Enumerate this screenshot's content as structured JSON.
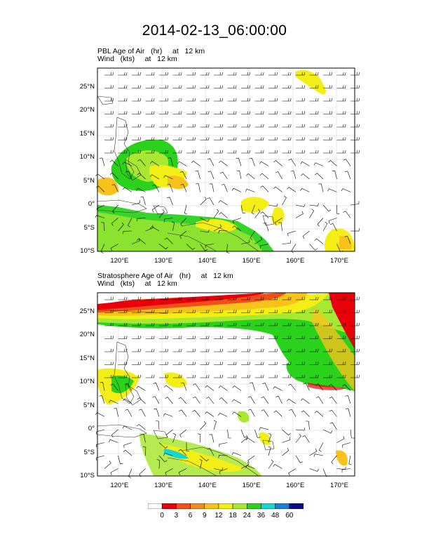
{
  "figure_title": "2014-02-13_06:00:00",
  "panels": [
    {
      "title_line1": "PBL Age of Air   (hr)     at   12 km",
      "title_line2": "Wind   (kts)     at   12 km",
      "lat_labels": [
        "25°N",
        "20°N",
        "15°N",
        "10°N",
        "5°N",
        "0°",
        "5°S",
        "10°S"
      ],
      "lon_labels": [
        "120°E",
        "130°E",
        "140°E",
        "150°E",
        "160°E",
        "170°E"
      ]
    },
    {
      "title_line1": "Stratosphere Age of Air   (hr)     at   12 km",
      "title_line2": "Wind   (kts)     at   12 km",
      "lat_labels": [
        "25°N",
        "20°N",
        "15°N",
        "10°N",
        "5°N",
        "0°",
        "5°S",
        "10°S"
      ],
      "lon_labels": [
        "120°E",
        "130°E",
        "140°E",
        "150°E",
        "160°E",
        "170°E"
      ]
    }
  ],
  "map_extent": {
    "lon_min": 115,
    "lon_max": 173.5,
    "lat_min": -10,
    "lat_max": 29
  },
  "colorbar": {
    "labels": [
      "0",
      "3",
      "6",
      "9",
      "12",
      "18",
      "24",
      "36",
      "48",
      "60"
    ],
    "colors": [
      "#ffffff",
      "#e8000b",
      "#f04f1a",
      "#f58a1f",
      "#f7c21c",
      "#f3ee16",
      "#a8e832",
      "#2bd21c",
      "#17d6d0",
      "#1b7de0",
      "#0c0c8a"
    ]
  }
}
